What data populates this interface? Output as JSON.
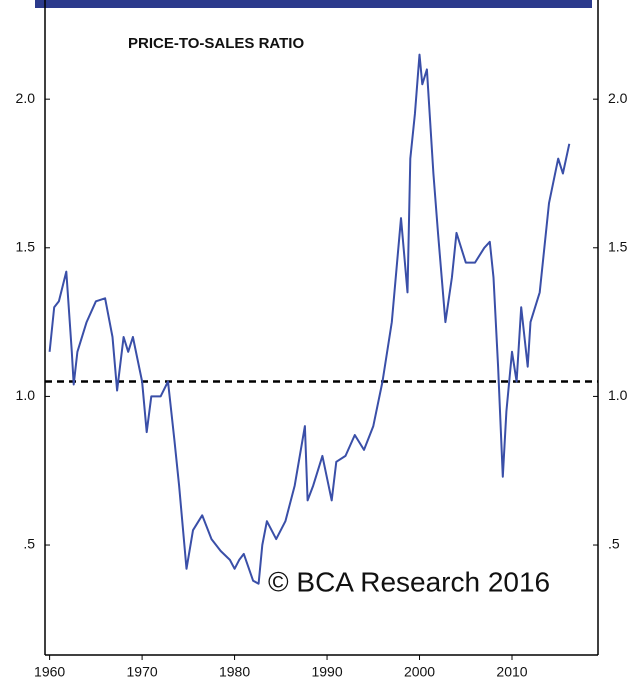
{
  "chart_data": {
    "type": "line",
    "title": "PRICE-TO-SALES RATIO",
    "source": "© BCA Research 2016",
    "x": [
      1960.0,
      1960.5,
      1961.0,
      1961.8,
      1962.4,
      1962.6,
      1963.0,
      1964.0,
      1965.0,
      1966.0,
      1966.8,
      1967.3,
      1968.0,
      1968.5,
      1969.0,
      1970.0,
      1970.5,
      1971.0,
      1972.0,
      1972.8,
      1973.5,
      1974.0,
      1974.8,
      1975.5,
      1976.5,
      1977.5,
      1978.5,
      1979.5,
      1980.0,
      1980.5,
      1981.0,
      1982.0,
      1982.6,
      1983.0,
      1983.5,
      1984.5,
      1985.5,
      1986.5,
      1987.6,
      1987.9,
      1988.5,
      1989.5,
      1990.5,
      1991.0,
      1992.0,
      1993.0,
      1994.0,
      1995.0,
      1996.0,
      1997.0,
      1998.0,
      1998.7,
      1999.0,
      1999.5,
      2000.0,
      2000.3,
      2000.8,
      2001.5,
      2002.0,
      2002.8,
      2003.5,
      2004.0,
      2005.0,
      2006.0,
      2007.0,
      2007.6,
      2008.0,
      2008.5,
      2009.0,
      2009.4,
      2010.0,
      2010.5,
      2011.0,
      2011.7,
      2012.0,
      2013.0,
      2014.0,
      2015.0,
      2015.5,
      2016.2
    ],
    "series": [
      {
        "color": "#3a4fa8",
        "values": [
          1.15,
          1.3,
          1.32,
          1.42,
          1.15,
          1.04,
          1.15,
          1.25,
          1.32,
          1.33,
          1.2,
          1.02,
          1.2,
          1.15,
          1.2,
          1.05,
          0.88,
          1.0,
          1.0,
          1.05,
          0.85,
          0.7,
          0.42,
          0.55,
          0.6,
          0.52,
          0.48,
          0.45,
          0.42,
          0.45,
          0.47,
          0.38,
          0.37,
          0.5,
          0.58,
          0.52,
          0.58,
          0.7,
          0.9,
          0.65,
          0.7,
          0.8,
          0.65,
          0.78,
          0.8,
          0.87,
          0.82,
          0.9,
          1.05,
          1.25,
          1.6,
          1.35,
          1.8,
          1.95,
          2.15,
          2.05,
          2.1,
          1.75,
          1.55,
          1.25,
          1.4,
          1.55,
          1.45,
          1.45,
          1.5,
          1.52,
          1.4,
          1.1,
          0.73,
          0.95,
          1.15,
          1.05,
          1.3,
          1.1,
          1.25,
          1.35,
          1.65,
          1.8,
          1.75,
          1.85
        ]
      }
    ],
    "hline": 1.05,
    "xlim": [
      1959.5,
      2019.3
    ],
    "xticks": [
      1960,
      1970,
      1980,
      1990,
      2000,
      2010
    ],
    "ylim": [
      0.13,
      2.3
    ],
    "yticks": [
      {
        "value": 0.5,
        "label": ".5"
      },
      {
        "value": 1,
        "label": "1.0"
      },
      {
        "value": 1.5,
        "label": "1.5"
      },
      {
        "value": 2,
        "label": "2.0"
      }
    ]
  }
}
